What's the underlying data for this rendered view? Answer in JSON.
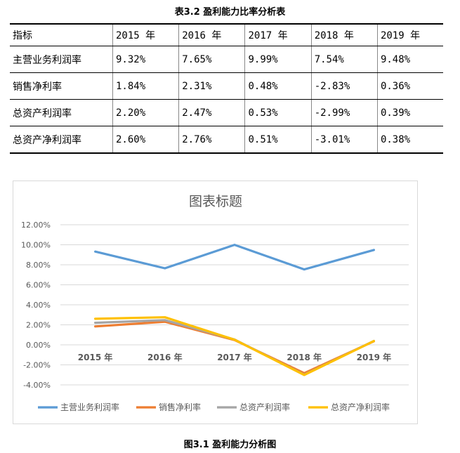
{
  "table": {
    "caption": "表3.2 盈利能力比率分析表",
    "headers": [
      "指标",
      "2015 年",
      "2016 年",
      "2017 年",
      "2018 年",
      "2019 年"
    ],
    "rows": [
      [
        "主营业务利润率",
        "9.32%",
        "7.65%",
        "9.99%",
        "7.54%",
        "9.48%"
      ],
      [
        "销售净利率",
        "1.84%",
        "2.31%",
        "0.48%",
        "-2.83%",
        "0.36%"
      ],
      [
        "总资产利润率",
        "2.20%",
        "2.47%",
        "0.53%",
        "-2.99%",
        "0.39%"
      ],
      [
        "总资产净利润率",
        "2.60%",
        "2.76%",
        "0.51%",
        "-3.01%",
        "0.38%"
      ]
    ]
  },
  "chart_data": {
    "type": "line",
    "title": "图表标题",
    "categories": [
      "2015 年",
      "2016 年",
      "2017 年",
      "2018 年",
      "2019 年"
    ],
    "series": [
      {
        "name": "主营业务利润率",
        "values": [
          9.32,
          7.65,
          9.99,
          7.54,
          9.48
        ],
        "color": "#5b9bd5"
      },
      {
        "name": "销售净利率",
        "values": [
          1.84,
          2.31,
          0.48,
          -2.83,
          0.36
        ],
        "color": "#ed7d31"
      },
      {
        "name": "总资产利润率",
        "values": [
          2.2,
          2.47,
          0.53,
          -2.99,
          0.39
        ],
        "color": "#a5a5a5"
      },
      {
        "name": "总资产净利润率",
        "values": [
          2.6,
          2.76,
          0.51,
          -3.01,
          0.38
        ],
        "color": "#ffc000"
      }
    ],
    "ylim": [
      -4,
      12
    ],
    "yticks": [
      "-4.00%",
      "-2.00%",
      "0.00%",
      "2.00%",
      "4.00%",
      "6.00%",
      "8.00%",
      "10.00%",
      "12.00%"
    ],
    "ytick_values": [
      -4,
      -2,
      0,
      2,
      4,
      6,
      8,
      10,
      12
    ],
    "grid": true,
    "legend": "bottom"
  },
  "figure_caption": "图3.1 盈利能力分析图"
}
